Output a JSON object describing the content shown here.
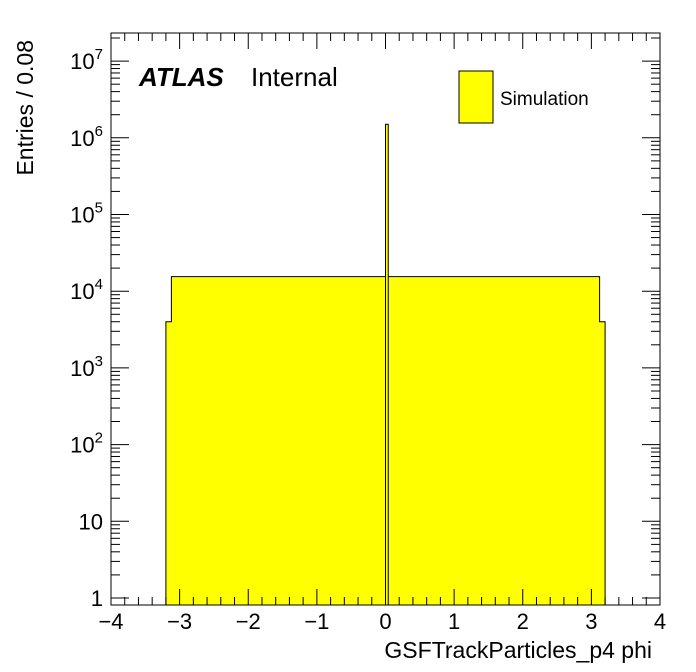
{
  "chart_data": {
    "type": "histogram",
    "xlabel": "GSFTrackParticles_p4 phi",
    "ylabel": "Entries / 0.08",
    "xlim": [
      -4,
      4
    ],
    "ylim": [
      0.8,
      20000000
    ],
    "yscale": "log",
    "x_ticks": [
      "−4",
      "−3",
      "−2",
      "−1",
      "0",
      "1",
      "2",
      "3",
      "4"
    ],
    "y_ticks": [
      {
        "base": "1",
        "exp": ""
      },
      {
        "base": "10",
        "exp": ""
      },
      {
        "base": "10",
        "exp": "2"
      },
      {
        "base": "10",
        "exp": "3"
      },
      {
        "base": "10",
        "exp": "4"
      },
      {
        "base": "10",
        "exp": "5"
      },
      {
        "base": "10",
        "exp": "6"
      },
      {
        "base": "10",
        "exp": "7"
      }
    ],
    "bin_width": 0.08,
    "series": [
      {
        "name": "Simulation",
        "color": "#ffff00",
        "edges": [
          -3.2,
          -3.12,
          3.12,
          3.2
        ],
        "values": [
          4000,
          15500,
          4000
        ]
      }
    ],
    "spike": {
      "x0": 0.0,
      "x1": 0.04,
      "value": 1500000
    },
    "labels": {
      "experiment": "ATLAS",
      "status": "Internal"
    }
  }
}
